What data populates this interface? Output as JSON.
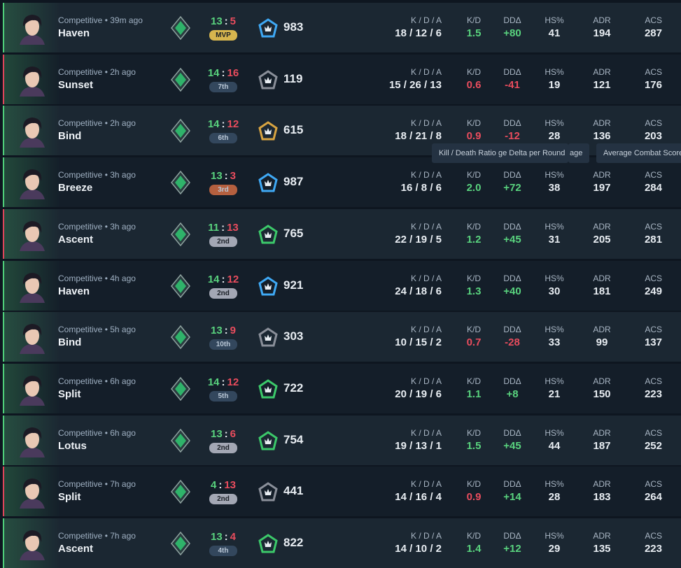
{
  "labels": {
    "kda": "K / D / A",
    "kd": "K/D",
    "dd": "DDΔ",
    "hs": "HS%",
    "adr": "ADR",
    "acs": "ACS"
  },
  "score_separator": ":",
  "tooltips": [
    "Kill / Death Ratio",
    "ge Delta per Round",
    "age",
    "Average Combat Score"
  ],
  "rows": [
    {
      "subtitle": "Competitive • 39m ago",
      "map": "Haven",
      "score": [
        "13",
        "5"
      ],
      "badge": "MVP",
      "badge_color": "#d6b54e",
      "rank_color": "#3fa9f5",
      "rating": "983",
      "kda": "18 / 12 / 6",
      "kd": "1.5",
      "dd": "+80",
      "hs": "41",
      "adr": "194",
      "acs": "287",
      "result": "win"
    },
    {
      "subtitle": "Competitive • 2h ago",
      "map": "Sunset",
      "score": [
        "14",
        "16"
      ],
      "badge": "7th",
      "badge_color": "#33475d",
      "rank_color": "#8a8f99",
      "rating": "119",
      "kda": "15 / 26 / 13",
      "kd": "0.6",
      "dd": "-41",
      "hs": "19",
      "adr": "121",
      "acs": "176",
      "result": "loss"
    },
    {
      "subtitle": "Competitive • 2h ago",
      "map": "Bind",
      "score": [
        "14",
        "12"
      ],
      "badge": "6th",
      "badge_color": "#33475d",
      "rank_color": "#d8a441",
      "rating": "615",
      "kda": "18 / 21 / 8",
      "kd": "0.9",
      "dd": "-12",
      "hs": "28",
      "adr": "136",
      "acs": "203",
      "result": "win"
    },
    {
      "subtitle": "Competitive • 3h ago",
      "map": "Breeze",
      "score": [
        "13",
        "3"
      ],
      "badge": "3rd",
      "badge_color": "#b5603f",
      "rank_color": "#3fa9f5",
      "rating": "987",
      "kda": "16 / 8 / 6",
      "kd": "2.0",
      "dd": "+72",
      "hs": "38",
      "adr": "197",
      "acs": "284",
      "result": "win"
    },
    {
      "subtitle": "Competitive • 3h ago",
      "map": "Ascent",
      "score": [
        "11",
        "13"
      ],
      "badge": "2nd",
      "badge_color": "#a3a7b4",
      "rank_color": "#3cc96a",
      "rating": "765",
      "kda": "22 / 19 / 5",
      "kd": "1.2",
      "dd": "+45",
      "hs": "31",
      "adr": "205",
      "acs": "281",
      "result": "loss"
    },
    {
      "subtitle": "Competitive • 4h ago",
      "map": "Haven",
      "score": [
        "14",
        "12"
      ],
      "badge": "2nd",
      "badge_color": "#a3a7b4",
      "rank_color": "#3fa9f5",
      "rating": "921",
      "kda": "24 / 18 / 6",
      "kd": "1.3",
      "dd": "+40",
      "hs": "30",
      "adr": "181",
      "acs": "249",
      "result": "win"
    },
    {
      "subtitle": "Competitive • 5h ago",
      "map": "Bind",
      "score": [
        "13",
        "9"
      ],
      "badge": "10th",
      "badge_color": "#33475d",
      "rank_color": "#8a8f99",
      "rating": "303",
      "kda": "10 / 15 / 2",
      "kd": "0.7",
      "dd": "-28",
      "hs": "33",
      "adr": "99",
      "acs": "137",
      "result": "win"
    },
    {
      "subtitle": "Competitive • 6h ago",
      "map": "Split",
      "score": [
        "14",
        "12"
      ],
      "badge": "5th",
      "badge_color": "#33475d",
      "rank_color": "#3cc96a",
      "rating": "722",
      "kda": "20 / 19 / 6",
      "kd": "1.1",
      "dd": "+8",
      "hs": "21",
      "adr": "150",
      "acs": "223",
      "result": "win"
    },
    {
      "subtitle": "Competitive • 6h ago",
      "map": "Lotus",
      "score": [
        "13",
        "6"
      ],
      "badge": "2nd",
      "badge_color": "#a3a7b4",
      "rank_color": "#3cc96a",
      "rating": "754",
      "kda": "19 / 13 / 1",
      "kd": "1.5",
      "dd": "+45",
      "hs": "44",
      "adr": "187",
      "acs": "252",
      "result": "win"
    },
    {
      "subtitle": "Competitive • 7h ago",
      "map": "Split",
      "score": [
        "4",
        "13"
      ],
      "badge": "2nd",
      "badge_color": "#a3a7b4",
      "rank_color": "#8a8f99",
      "rating": "441",
      "kda": "14 / 16 / 4",
      "kd": "0.9",
      "dd": "+14",
      "hs": "28",
      "adr": "183",
      "acs": "264",
      "result": "loss"
    },
    {
      "subtitle": "Competitive • 7h ago",
      "map": "Ascent",
      "score": [
        "13",
        "4"
      ],
      "badge": "4th",
      "badge_color": "#33475d",
      "rank_color": "#3cc96a",
      "rating": "822",
      "kda": "14 / 10 / 2",
      "kd": "1.4",
      "dd": "+12",
      "hs": "29",
      "adr": "135",
      "acs": "223",
      "result": "win"
    }
  ]
}
